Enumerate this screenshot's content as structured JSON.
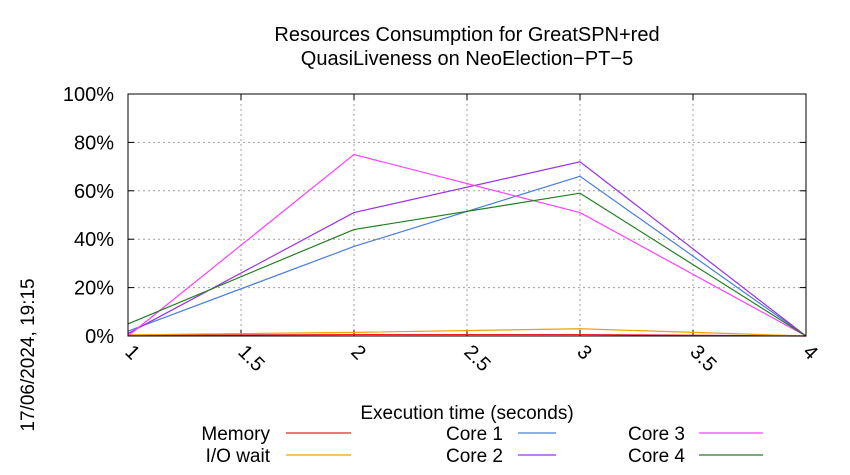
{
  "chart_data": {
    "type": "line",
    "title_line1": "Resources Consumption for GreatSPN+red",
    "title_line2": "QuasiLiveness on NeoElection−PT−5",
    "xlabel": "Execution time (seconds)",
    "ylabel": "",
    "side_label": "17/06/2024, 19:15",
    "xlim": [
      1,
      4
    ],
    "ylim": [
      0,
      100
    ],
    "x_ticks": [
      1,
      1.5,
      2,
      2.5,
      3,
      3.5,
      4
    ],
    "x_tick_labels": [
      "1",
      "1.5",
      "2",
      "2.5",
      "3",
      "3.5",
      "4"
    ],
    "y_ticks": [
      0,
      20,
      40,
      60,
      80,
      100
    ],
    "y_tick_labels": [
      "0%",
      "20%",
      "40%",
      "60%",
      "80%",
      "100%"
    ],
    "grid": true,
    "legend_position": "bottom",
    "series": [
      {
        "name": "Memory",
        "color": "#e8202a",
        "x": [
          1,
          2,
          3,
          4
        ],
        "values": [
          0.3,
          0.6,
          0.6,
          0
        ]
      },
      {
        "name": "I/O wait",
        "color": "#f0a000",
        "x": [
          1,
          2,
          3,
          4
        ],
        "values": [
          0.5,
          1.5,
          3,
          0
        ]
      },
      {
        "name": "Core 1",
        "color": "#4a7fd8",
        "x": [
          1,
          2,
          3,
          4
        ],
        "values": [
          2,
          37,
          66,
          0
        ]
      },
      {
        "name": "Core 2",
        "color": "#9b30e8",
        "x": [
          1,
          2,
          3,
          4
        ],
        "values": [
          1,
          51,
          72,
          0
        ]
      },
      {
        "name": "Core 3",
        "color": "#ff40ff",
        "x": [
          1,
          2,
          3,
          4
        ],
        "values": [
          0,
          75,
          51,
          0
        ]
      },
      {
        "name": "Core 4",
        "color": "#208020",
        "x": [
          1,
          2,
          3,
          4
        ],
        "values": [
          5,
          44,
          59,
          0
        ]
      }
    ]
  }
}
